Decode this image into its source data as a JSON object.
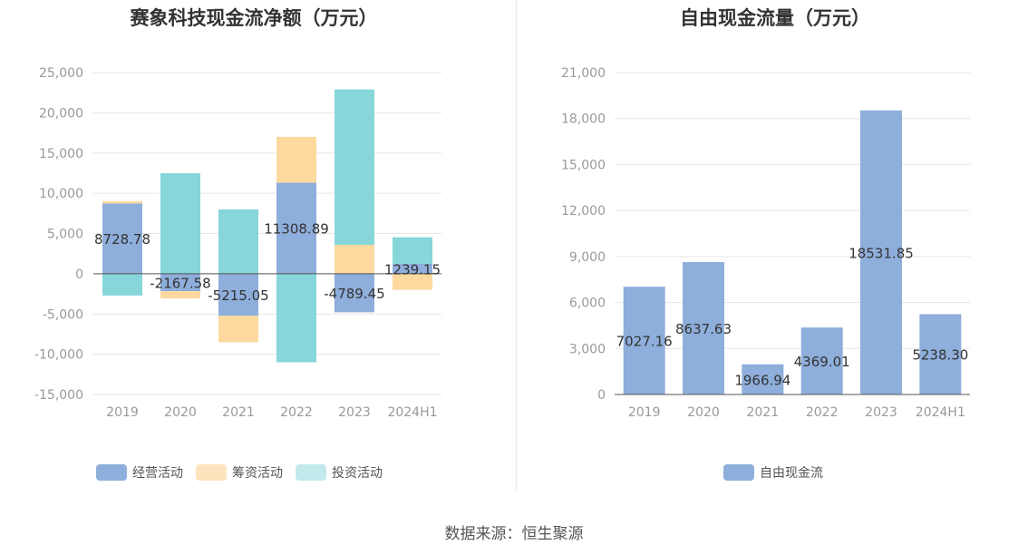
{
  "chart_data": [
    {
      "type": "bar",
      "stacked": true,
      "title": "赛象科技现金流净额（万元）",
      "categories": [
        "2019",
        "2020",
        "2021",
        "2022",
        "2023",
        "2024H1"
      ],
      "ylim": [
        -15000,
        25000
      ],
      "yticks": [
        25000,
        20000,
        15000,
        10000,
        5000,
        0,
        -5000,
        -10000,
        -15000
      ],
      "ytick_labels": [
        "25,000",
        "20,000",
        "15,000",
        "10,000",
        "5,000",
        "0",
        "-5,000",
        "-10,000",
        "-15,000"
      ],
      "series": [
        {
          "name": "经营活动",
          "color": "#8eaedb",
          "values": [
            8728.78,
            -2167.58,
            -5215.05,
            11308.89,
            -4789.45,
            1239.15
          ]
        },
        {
          "name": "筹资活动",
          "color": "#fdd9a0",
          "values": [
            300,
            -900,
            -3300,
            5700,
            3600,
            -2000
          ]
        },
        {
          "name": "投资活动",
          "color": "#86d6da",
          "values": [
            -2700,
            12500,
            8000,
            -11000,
            19300,
            3300
          ]
        }
      ],
      "data_labels": [
        "8728.78",
        "-2167.58",
        "-5215.05",
        "11308.89",
        "-4789.45",
        "1239.15"
      ],
      "legend": [
        "经营活动",
        "筹资活动",
        "投资活动"
      ],
      "legend_colors": [
        "#8eaedb",
        "#fde4bd",
        "#c2e9eb"
      ]
    },
    {
      "type": "bar",
      "title": "自由现金流量（万元）",
      "categories": [
        "2019",
        "2020",
        "2021",
        "2022",
        "2023",
        "2024H1"
      ],
      "ylim": [
        0,
        21000
      ],
      "yticks": [
        21000,
        18000,
        15000,
        12000,
        9000,
        6000,
        3000,
        0
      ],
      "ytick_labels": [
        "21,000",
        "18,000",
        "15,000",
        "12,000",
        "9,000",
        "6,000",
        "3,000",
        "0"
      ],
      "series": [
        {
          "name": "自由现金流",
          "color": "#8eaedb",
          "values": [
            7027.16,
            8637.63,
            1966.94,
            4369.01,
            18531.85,
            5238.3
          ]
        }
      ],
      "data_labels": [
        "7027.16",
        "8637.63",
        "1966.94",
        "4369.01",
        "18531.85",
        "5238.30"
      ],
      "legend": [
        "自由现金流"
      ],
      "legend_colors": [
        "#8eaedb"
      ]
    }
  ],
  "source": "数据来源：恒生聚源"
}
